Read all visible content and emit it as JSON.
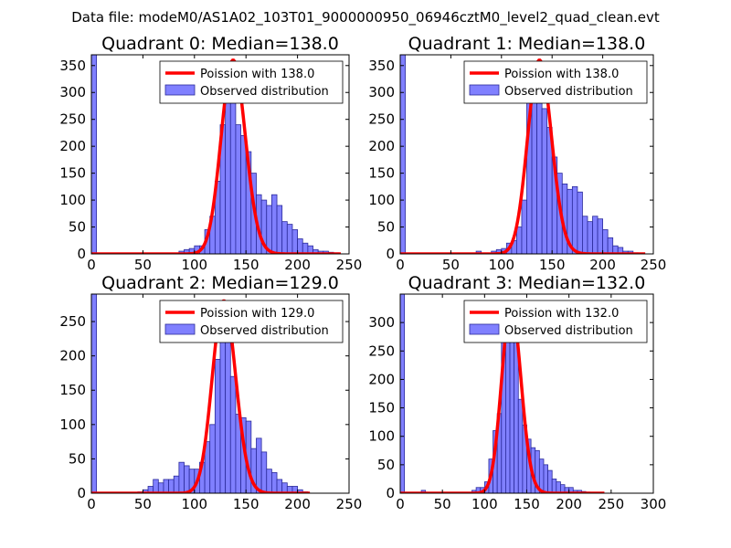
{
  "figure": {
    "suptitle": "Data file: modeM0/AS1A02_103T01_9000000950_06946cztM0_level2_quad_clean.evt",
    "colors": {
      "hist_fill": "#8080ff",
      "hist_edge": "#2a2a9a",
      "curve": "#ff0000",
      "frame": "#000000"
    }
  },
  "chart_data": [
    {
      "type": "bar",
      "title": "Quadrant 0: Median=138.0",
      "xlim": [
        0,
        250
      ],
      "ylim": [
        0,
        370
      ],
      "xticks": [
        0,
        50,
        100,
        150,
        200,
        250
      ],
      "yticks": [
        0,
        50,
        100,
        150,
        200,
        250,
        300,
        350
      ],
      "bin_width": 5,
      "legend": {
        "placement": "upper-right",
        "entries": [
          "Poission with 138.0",
          "Observed distribution"
        ]
      },
      "bins": [
        {
          "x": 0,
          "y": 370
        },
        {
          "x": 85,
          "y": 5
        },
        {
          "x": 90,
          "y": 8
        },
        {
          "x": 95,
          "y": 10
        },
        {
          "x": 100,
          "y": 15
        },
        {
          "x": 105,
          "y": 15
        },
        {
          "x": 110,
          "y": 45
        },
        {
          "x": 115,
          "y": 70
        },
        {
          "x": 120,
          "y": 135
        },
        {
          "x": 125,
          "y": 240
        },
        {
          "x": 130,
          "y": 310
        },
        {
          "x": 135,
          "y": 295
        },
        {
          "x": 140,
          "y": 240
        },
        {
          "x": 145,
          "y": 220
        },
        {
          "x": 150,
          "y": 190
        },
        {
          "x": 155,
          "y": 150
        },
        {
          "x": 160,
          "y": 110
        },
        {
          "x": 165,
          "y": 100
        },
        {
          "x": 170,
          "y": 90
        },
        {
          "x": 175,
          "y": 110
        },
        {
          "x": 180,
          "y": 90
        },
        {
          "x": 185,
          "y": 60
        },
        {
          "x": 190,
          "y": 55
        },
        {
          "x": 195,
          "y": 45
        },
        {
          "x": 200,
          "y": 28
        },
        {
          "x": 205,
          "y": 20
        },
        {
          "x": 210,
          "y": 15
        },
        {
          "x": 215,
          "y": 8
        },
        {
          "x": 220,
          "y": 5
        },
        {
          "x": 225,
          "y": 5
        },
        {
          "x": 230,
          "y": 3
        },
        {
          "x": 235,
          "y": 2
        }
      ],
      "curve": {
        "mean": 138.0,
        "peak": 360,
        "x_max": 242
      }
    },
    {
      "type": "bar",
      "title": "Quadrant 1: Median=138.0",
      "xlim": [
        0,
        250
      ],
      "ylim": [
        0,
        370
      ],
      "xticks": [
        0,
        50,
        100,
        150,
        200,
        250
      ],
      "yticks": [
        0,
        50,
        100,
        150,
        200,
        250,
        300,
        350
      ],
      "bin_width": 5,
      "legend": {
        "placement": "upper-right",
        "entries": [
          "Poission with 138.0",
          "Observed distribution"
        ]
      },
      "bins": [
        {
          "x": 0,
          "y": 370
        },
        {
          "x": 75,
          "y": 5
        },
        {
          "x": 90,
          "y": 5
        },
        {
          "x": 95,
          "y": 8
        },
        {
          "x": 100,
          "y": 10
        },
        {
          "x": 105,
          "y": 20
        },
        {
          "x": 110,
          "y": 25
        },
        {
          "x": 115,
          "y": 50
        },
        {
          "x": 120,
          "y": 100
        },
        {
          "x": 125,
          "y": 300
        },
        {
          "x": 130,
          "y": 340
        },
        {
          "x": 135,
          "y": 280
        },
        {
          "x": 140,
          "y": 270
        },
        {
          "x": 145,
          "y": 235
        },
        {
          "x": 150,
          "y": 180
        },
        {
          "x": 155,
          "y": 150
        },
        {
          "x": 160,
          "y": 130
        },
        {
          "x": 165,
          "y": 120
        },
        {
          "x": 170,
          "y": 125
        },
        {
          "x": 175,
          "y": 115
        },
        {
          "x": 180,
          "y": 70
        },
        {
          "x": 185,
          "y": 60
        },
        {
          "x": 190,
          "y": 70
        },
        {
          "x": 195,
          "y": 65
        },
        {
          "x": 200,
          "y": 45
        },
        {
          "x": 205,
          "y": 30
        },
        {
          "x": 210,
          "y": 15
        },
        {
          "x": 215,
          "y": 12
        },
        {
          "x": 220,
          "y": 5
        },
        {
          "x": 225,
          "y": 5
        },
        {
          "x": 230,
          "y": 2
        }
      ],
      "curve": {
        "mean": 138.0,
        "peak": 360,
        "x_max": 242
      }
    },
    {
      "type": "bar",
      "title": "Quadrant 2: Median=129.0",
      "xlim": [
        0,
        250
      ],
      "ylim": [
        0,
        290
      ],
      "xticks": [
        0,
        50,
        100,
        150,
        200,
        250
      ],
      "yticks": [
        0,
        50,
        100,
        150,
        200,
        250
      ],
      "bin_width": 5,
      "legend": {
        "placement": "upper-right",
        "entries": [
          "Poission with 129.0",
          "Observed distribution"
        ]
      },
      "bins": [
        {
          "x": 0,
          "y": 290
        },
        {
          "x": 45,
          "y": 2
        },
        {
          "x": 50,
          "y": 5
        },
        {
          "x": 55,
          "y": 10
        },
        {
          "x": 60,
          "y": 20
        },
        {
          "x": 65,
          "y": 15
        },
        {
          "x": 70,
          "y": 20
        },
        {
          "x": 75,
          "y": 20
        },
        {
          "x": 80,
          "y": 25
        },
        {
          "x": 85,
          "y": 45
        },
        {
          "x": 90,
          "y": 40
        },
        {
          "x": 95,
          "y": 35
        },
        {
          "x": 100,
          "y": 35
        },
        {
          "x": 105,
          "y": 45
        },
        {
          "x": 110,
          "y": 75
        },
        {
          "x": 115,
          "y": 100
        },
        {
          "x": 120,
          "y": 195
        },
        {
          "x": 125,
          "y": 250
        },
        {
          "x": 130,
          "y": 270
        },
        {
          "x": 135,
          "y": 170
        },
        {
          "x": 140,
          "y": 115
        },
        {
          "x": 145,
          "y": 110
        },
        {
          "x": 150,
          "y": 105
        },
        {
          "x": 155,
          "y": 65
        },
        {
          "x": 160,
          "y": 80
        },
        {
          "x": 165,
          "y": 60
        },
        {
          "x": 170,
          "y": 35
        },
        {
          "x": 175,
          "y": 30
        },
        {
          "x": 180,
          "y": 20
        },
        {
          "x": 185,
          "y": 15
        },
        {
          "x": 190,
          "y": 10
        },
        {
          "x": 195,
          "y": 10
        },
        {
          "x": 200,
          "y": 5
        },
        {
          "x": 205,
          "y": 2
        }
      ],
      "curve": {
        "mean": 129.0,
        "peak": 280,
        "x_max": 212
      }
    },
    {
      "type": "bar",
      "title": "Quadrant 3: Median=132.0",
      "xlim": [
        0,
        300
      ],
      "ylim": [
        0,
        350
      ],
      "xticks": [
        0,
        50,
        100,
        150,
        200,
        250,
        300
      ],
      "yticks": [
        0,
        50,
        100,
        150,
        200,
        250,
        300
      ],
      "bin_width": 5,
      "legend": {
        "placement": "upper-right",
        "entries": [
          "Poission with 132.0",
          "Observed distribution"
        ]
      },
      "bins": [
        {
          "x": 0,
          "y": 350
        },
        {
          "x": 25,
          "y": 5
        },
        {
          "x": 85,
          "y": 5
        },
        {
          "x": 90,
          "y": 10
        },
        {
          "x": 95,
          "y": 10
        },
        {
          "x": 100,
          "y": 20
        },
        {
          "x": 105,
          "y": 60
        },
        {
          "x": 110,
          "y": 110
        },
        {
          "x": 115,
          "y": 140
        },
        {
          "x": 120,
          "y": 290
        },
        {
          "x": 125,
          "y": 335
        },
        {
          "x": 130,
          "y": 295
        },
        {
          "x": 135,
          "y": 290
        },
        {
          "x": 140,
          "y": 165
        },
        {
          "x": 145,
          "y": 120
        },
        {
          "x": 150,
          "y": 95
        },
        {
          "x": 155,
          "y": 80
        },
        {
          "x": 160,
          "y": 75
        },
        {
          "x": 165,
          "y": 60
        },
        {
          "x": 170,
          "y": 50
        },
        {
          "x": 175,
          "y": 40
        },
        {
          "x": 180,
          "y": 25
        },
        {
          "x": 185,
          "y": 20
        },
        {
          "x": 190,
          "y": 15
        },
        {
          "x": 195,
          "y": 10
        },
        {
          "x": 200,
          "y": 10
        },
        {
          "x": 205,
          "y": 5
        },
        {
          "x": 210,
          "y": 5
        },
        {
          "x": 215,
          "y": 3
        },
        {
          "x": 220,
          "y": 2
        }
      ],
      "curve": {
        "mean": 132.0,
        "peak": 330,
        "x_max": 242
      }
    }
  ]
}
